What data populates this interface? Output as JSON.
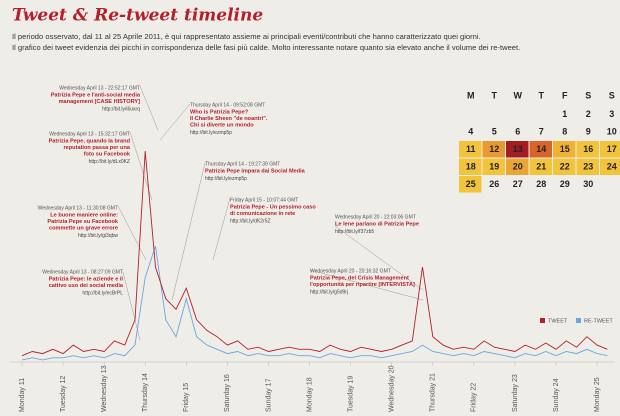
{
  "chart_data": {
    "type": "line",
    "title": "Tweet & Re-tweet timeline",
    "subtitle": [
      "Il periodo osservato, dal 11 al 25 Aprile 2011, è qui rappresentato assieme ai principali eventi/contributi che hanno caratterizzato quei giorni.",
      "Il grafico dei tweet evidenzia dei picchi in corrispondenza delle fasi più calde. Molto interessante notare quanto sia elevato anche il volume dei re-tweet."
    ],
    "categories": [
      "Monday 11",
      null,
      null,
      null,
      "Tuesday 12",
      null,
      null,
      null,
      "Wednesday 13",
      null,
      null,
      null,
      "Thursday 14",
      null,
      null,
      null,
      "Friday 15",
      null,
      null,
      null,
      "Saturday 16",
      null,
      null,
      null,
      "Sunday 17",
      null,
      null,
      null,
      "Monday 18",
      null,
      null,
      null,
      "Tuesday 19",
      null,
      null,
      null,
      "Wednesday 20",
      null,
      null,
      null,
      "Thursday 21",
      null,
      null,
      null,
      "Friday 22",
      null,
      null,
      null,
      "Saturday 23",
      null,
      null,
      null,
      "Sunday 24",
      null,
      null,
      null,
      "Monday 25",
      null
    ],
    "series": [
      {
        "name": "TWEET",
        "color": "#b3202a",
        "values": [
          3,
          5,
          4,
          6,
          4,
          8,
          5,
          6,
          5,
          10,
          8,
          20,
          100,
          45,
          30,
          25,
          35,
          20,
          15,
          12,
          8,
          10,
          6,
          7,
          5,
          6,
          7,
          6,
          6,
          5,
          8,
          6,
          5,
          7,
          6,
          5,
          6,
          8,
          10,
          45,
          12,
          8,
          6,
          7,
          6,
          10,
          7,
          6,
          5,
          8,
          6,
          9,
          6,
          10,
          7,
          12,
          8,
          6
        ]
      },
      {
        "name": "RE-TWEET",
        "color": "#6aa7dc",
        "values": [
          1,
          2,
          1,
          2,
          2,
          3,
          2,
          3,
          2,
          4,
          3,
          8,
          40,
          55,
          20,
          12,
          30,
          12,
          8,
          6,
          4,
          5,
          3,
          4,
          3,
          3,
          4,
          3,
          3,
          2,
          4,
          3,
          2,
          3,
          3,
          2,
          3,
          4,
          5,
          8,
          5,
          4,
          3,
          4,
          3,
          5,
          4,
          3,
          2,
          4,
          3,
          5,
          3,
          5,
          4,
          6,
          4,
          3
        ]
      }
    ],
    "ylim": [
      0,
      110
    ],
    "annotations": [
      {
        "date": "Wednesday April 13 - 22:52:17 GMT",
        "lines": [
          "Patrizia Pepe e l'anti-social media",
          "management [CASE HISTORY]"
        ],
        "url": "http://bit.ly/i6uxrq"
      },
      {
        "date": "Wednesday April 13 - 15:32:17 GMT",
        "lines": [
          "Patrizia Pepe, quando la brand",
          "reputation passa per una",
          "foto su Facebook"
        ],
        "url": "http://bit.ly/dLx0KZ"
      },
      {
        "date": "Wednesday April 13 - 11:30:08 GMT",
        "lines": [
          "Le buone maniere online:",
          "Patrizia Pepe su Facebook",
          "commette un grave errore"
        ],
        "url": "http://bit.ly/gi3qbw"
      },
      {
        "date": "Wednesday April 13 - 08:27:09 GMT",
        "lines": [
          "Patrizia Pepe: le aziende e il",
          "cattivo uso dei social media"
        ],
        "url": "http://bit.ly/ecBrPL"
      },
      {
        "date": "Thursday April 14 - 09:52:08 GMT",
        "lines": [
          "Who is Patrizia Pepe?",
          "Il Charlie Sheen \"de noantri\".",
          "Chi si diverte un mondo"
        ],
        "url": "http://bit.ly/ezmp5p"
      },
      {
        "date": "Thursday April 14 - 19:27:39 GMT",
        "lines": [
          "Patrizia Pepe impara dai Social Media"
        ],
        "url": "http://bit.ly/ezmp5p"
      },
      {
        "date": "Friday April 15 - 10:07:44 GMT",
        "lines": [
          "Patrizia Pepe - Un pessimo caso",
          "di comunicazione in rete"
        ],
        "url": "http://bit.ly/dK2r5Z"
      },
      {
        "date": "Wednesday April 20 - 22:03:06 GMT",
        "lines": [
          "Le Iene parlano di Patrizia Pepe"
        ],
        "url": "http://bit.ly/f37zb5"
      },
      {
        "date": "Wednesday April 20 - 20:16:32 GMT",
        "lines": [
          "Patrizia Pepe, del Crisis Management",
          "l'opportunità per ripartire [INTERVISTA]"
        ],
        "url": "http://bit.ly/g5d9rj"
      }
    ]
  },
  "calendar": {
    "days": [
      "M",
      "T",
      "W",
      "T",
      "F",
      "S",
      "S"
    ],
    "weeks": [
      [
        null,
        null,
        null,
        null,
        "1",
        "2",
        "3"
      ],
      [
        "4",
        "5",
        "6",
        "7",
        "8",
        "9",
        "10"
      ],
      [
        "11",
        "12",
        "13",
        "14",
        "15",
        "16",
        "17"
      ],
      [
        "18",
        "19",
        "20",
        "21",
        "22",
        "23",
        "24"
      ],
      [
        "25",
        "26",
        "27",
        "28",
        "29",
        "30",
        null
      ]
    ],
    "colors": [
      [
        null,
        null,
        null,
        null,
        null,
        null,
        null
      ],
      [
        null,
        null,
        null,
        null,
        null,
        null,
        null
      ],
      [
        "#f2c43c",
        "#e89a30",
        "#a31c22",
        "#d9642a",
        "#f0b233",
        "#f2c43c",
        "#f2c43c"
      ],
      [
        "#f2c43c",
        "#f2c43c",
        "#eaa535",
        "#f2c43c",
        "#f2c43c",
        "#f2c43c",
        "#f2c43c"
      ],
      [
        "#f2c43c",
        null,
        null,
        null,
        null,
        null,
        null
      ]
    ]
  }
}
